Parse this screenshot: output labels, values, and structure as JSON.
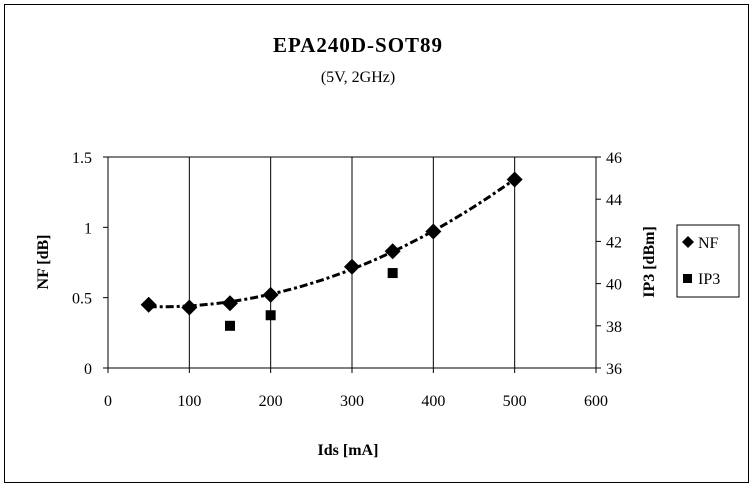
{
  "chart_data": {
    "type": "scatter",
    "title": "EPA240D-SOT89",
    "subtitle": "(5V, 2GHz)",
    "xlabel": "Ids [mA]",
    "ylabel": "NF [dB]",
    "y2label": "IP3 [dBm]",
    "xlim": [
      0,
      600
    ],
    "ylim": [
      0,
      1.5
    ],
    "y2lim": [
      36,
      46
    ],
    "xticks": [
      "0",
      "100",
      "200",
      "300",
      "400",
      "500",
      "600"
    ],
    "yticks": [
      "0",
      "0.5",
      "1",
      "1.5"
    ],
    "y2ticks": [
      "36",
      "38",
      "40",
      "42",
      "44",
      "46"
    ],
    "grid": "vertical",
    "legend_position": "right",
    "series": [
      {
        "name": "NF",
        "axis": "left",
        "marker": "diamond",
        "trendline": "dotted",
        "x": [
          50,
          100,
          150,
          200,
          300,
          350,
          400,
          500
        ],
        "y": [
          0.45,
          0.43,
          0.46,
          0.52,
          0.72,
          0.83,
          0.97,
          1.34
        ]
      },
      {
        "name": "IP3",
        "axis": "right",
        "marker": "square",
        "x": [
          150,
          200,
          350
        ],
        "y": [
          38.0,
          38.5,
          40.5
        ]
      }
    ]
  }
}
